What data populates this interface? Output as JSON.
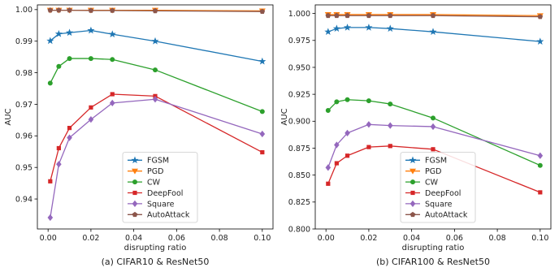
{
  "figure": {
    "captions": [
      "(a) CIFAR10 & ResNet50",
      "(b) CIFAR100 & ResNet50"
    ]
  },
  "colors": {
    "FGSM": "#1f77b4",
    "PGD": "#ff7f0e",
    "CW": "#2ca02c",
    "DeepFool": "#d62728",
    "Square": "#9467bd",
    "AutoAttack": "#8c564b"
  },
  "markers": {
    "FGSM": "star",
    "PGD": "triangle-down",
    "CW": "circle",
    "DeepFool": "square",
    "Square": "diamond",
    "AutoAttack": "pentagon"
  },
  "chart_data": [
    {
      "type": "line",
      "caption": "(a) CIFAR10 & ResNet50",
      "xlabel": "disrupting ratio",
      "ylabel": "AUC",
      "x": [
        0.001,
        0.005,
        0.01,
        0.02,
        0.03,
        0.05,
        0.1
      ],
      "xlim": [
        -0.005,
        0.105
      ],
      "ylim": [
        0.9305,
        1.0015
      ],
      "xticks": [
        0.0,
        0.02,
        0.04,
        0.06,
        0.08,
        0.1
      ],
      "xtick_labels": [
        "0.00",
        "0.02",
        "0.04",
        "0.06",
        "0.08",
        "0.10"
      ],
      "yticks": [
        0.94,
        0.95,
        0.96,
        0.97,
        0.98,
        0.99,
        1.0
      ],
      "ytick_labels": [
        "0.94",
        "0.95",
        "0.96",
        "0.97",
        "0.98",
        "0.99",
        "1.00"
      ],
      "grid": false,
      "legend": "lower-center",
      "series": [
        {
          "name": "FGSM",
          "values": [
            0.9901,
            0.9923,
            0.9927,
            0.9934,
            0.9922,
            0.99,
            0.9836
          ]
        },
        {
          "name": "PGD",
          "values": [
            0.9998,
            0.9998,
            0.9998,
            0.9998,
            0.9998,
            0.9998,
            0.9996
          ]
        },
        {
          "name": "CW",
          "values": [
            0.9767,
            0.982,
            0.9845,
            0.9845,
            0.9842,
            0.9809,
            0.9677
          ]
        },
        {
          "name": "DeepFool",
          "values": [
            0.9456,
            0.9561,
            0.9625,
            0.969,
            0.9732,
            0.9726,
            0.9548
          ]
        },
        {
          "name": "Square",
          "values": [
            0.9341,
            0.951,
            0.9594,
            0.9652,
            0.9704,
            0.9716,
            0.9606
          ]
        },
        {
          "name": "AutoAttack",
          "values": [
            0.9998,
            0.9998,
            0.9998,
            0.9997,
            0.9997,
            0.9996,
            0.9994
          ]
        }
      ]
    },
    {
      "type": "line",
      "caption": "(b) CIFAR100 & ResNet50",
      "xlabel": "disrupting ratio",
      "ylabel": "AUC",
      "x": [
        0.001,
        0.005,
        0.01,
        0.02,
        0.03,
        0.05,
        0.1
      ],
      "xlim": [
        -0.005,
        0.105
      ],
      "ylim": [
        0.8,
        1.008
      ],
      "xticks": [
        0.0,
        0.02,
        0.04,
        0.06,
        0.08,
        0.1
      ],
      "xtick_labels": [
        "0.00",
        "0.02",
        "0.04",
        "0.06",
        "0.08",
        "0.10"
      ],
      "yticks": [
        0.8,
        0.825,
        0.85,
        0.875,
        0.9,
        0.925,
        0.95,
        0.975,
        1.0
      ],
      "ytick_labels": [
        "0.800",
        "0.825",
        "0.850",
        "0.875",
        "0.900",
        "0.925",
        "0.950",
        "0.975",
        "1.000"
      ],
      "grid": false,
      "legend": "lower-center",
      "series": [
        {
          "name": "FGSM",
          "values": [
            0.983,
            0.986,
            0.987,
            0.987,
            0.986,
            0.983,
            0.974
          ]
        },
        {
          "name": "PGD",
          "values": [
            0.999,
            0.999,
            0.999,
            0.999,
            0.999,
            0.999,
            0.998
          ]
        },
        {
          "name": "CW",
          "values": [
            0.91,
            0.918,
            0.92,
            0.919,
            0.916,
            0.903,
            0.859
          ]
        },
        {
          "name": "DeepFool",
          "values": [
            0.842,
            0.861,
            0.868,
            0.876,
            0.877,
            0.874,
            0.834
          ]
        },
        {
          "name": "Square",
          "values": [
            0.857,
            0.878,
            0.889,
            0.897,
            0.896,
            0.895,
            0.868
          ]
        },
        {
          "name": "AutoAttack",
          "values": [
            0.998,
            0.998,
            0.998,
            0.998,
            0.998,
            0.998,
            0.997
          ]
        }
      ]
    }
  ]
}
